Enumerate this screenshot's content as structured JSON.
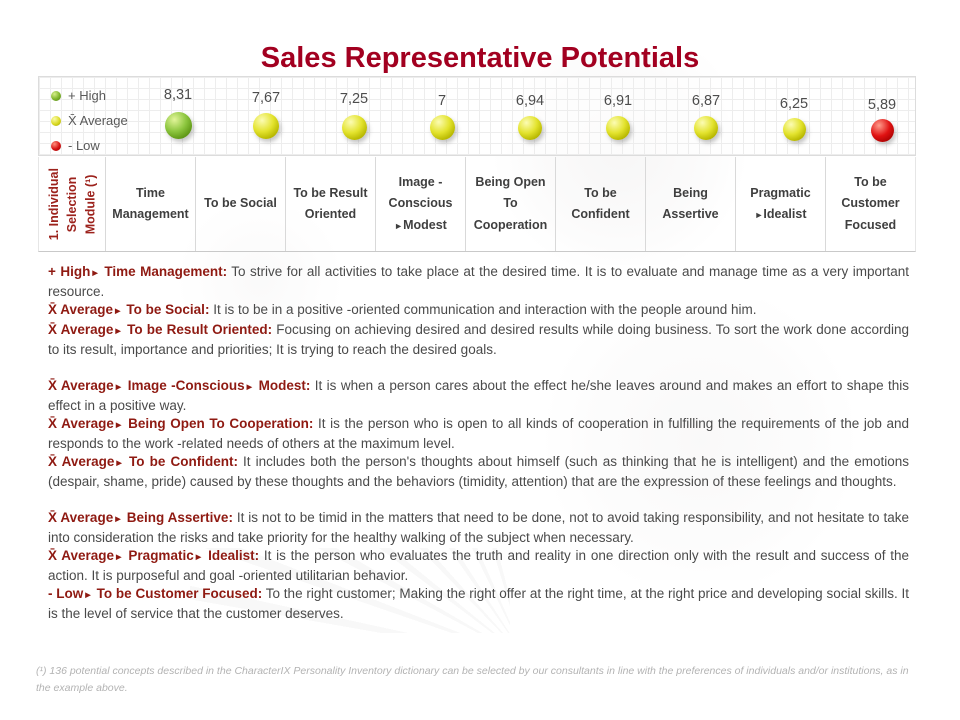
{
  "header": {
    "title": "Sales Representative Potentials"
  },
  "colors": {
    "title_red": "#a20020",
    "lead_red": "#8f1a12",
    "module_red": "#9c221c",
    "ball_high_green": "#8dc63f",
    "ball_average_yellow": "#e3e32e",
    "ball_low_red": "#e01212",
    "body_text": "#4a4a4a"
  },
  "chart_data": {
    "type": "scatter",
    "title": "Sales Representative Potentials",
    "xlabel": "",
    "ylabel": "",
    "grid": true,
    "legend_position": "left-inside",
    "value_range": [
      5.89,
      8.31
    ],
    "legend": [
      {
        "key": "high",
        "label": "+ High",
        "color": "#8dc63f"
      },
      {
        "key": "average",
        "label": "X̄ Average",
        "color": "#e3e32e"
      },
      {
        "key": "low",
        "label": "- Low",
        "color": "#e01212"
      }
    ],
    "categories": [
      "Time Management",
      "To be Social",
      "To be Result Oriented",
      "Image -Conscious ►Modest",
      "Being Open To Cooperation",
      "To be Confident",
      "Being Assertive",
      "Pragmatic ►Idealist",
      "To be Customer Focused"
    ],
    "points": [
      {
        "category": "Time Management",
        "value": 8.31,
        "display": "8,31",
        "level": "high"
      },
      {
        "category": "To be Social",
        "value": 7.67,
        "display": "7,67",
        "level": "average"
      },
      {
        "category": "To be Result Oriented",
        "value": 7.25,
        "display": "7,25",
        "level": "average"
      },
      {
        "category": "Image -Conscious ►Modest",
        "value": 7.0,
        "display": "7",
        "level": "average"
      },
      {
        "category": "Being Open To Cooperation",
        "value": 6.94,
        "display": "6,94",
        "level": "average"
      },
      {
        "category": "To be Confident",
        "value": 6.91,
        "display": "6,91",
        "level": "average"
      },
      {
        "category": "Being Assertive",
        "value": 6.87,
        "display": "6,87",
        "level": "average"
      },
      {
        "category": "Pragmatic ►Idealist",
        "value": 6.25,
        "display": "6,25",
        "level": "average"
      },
      {
        "category": "To be Customer Focused",
        "value": 5.89,
        "display": "5,89",
        "level": "low"
      }
    ]
  },
  "table": {
    "module_label": "1. Individual\nSelection\nModule (¹)",
    "columns": [
      "Time\nManagement",
      "To be Social",
      "To be Result\nOriented",
      "Image -Conscious\n►Modest",
      "Being Open To\nCooperation",
      "To be Confident",
      "Being Assertive",
      "Pragmatic\n►Idealist",
      "To be Customer\nFocused"
    ]
  },
  "descriptions": {
    "groups": [
      {
        "items": [
          {
            "lead": "+ High► Time Management:",
            "text": "To strive for all activities to take place at the desired time. It is to evaluate and manage time as a very important resource."
          },
          {
            "lead": "X̄ Average► To be Social:",
            "text": "It is to be in a positive -oriented communication and interaction with the people around him."
          },
          {
            "lead": "X̄ Average► To be Result Oriented:",
            "text": "Focusing on achieving desired and desired results while doing business. To sort the work done according to its result, importance and priorities; It is trying to reach the desired goals."
          }
        ]
      },
      {
        "items": [
          {
            "lead": "X̄ Average► Image -Conscious► Modest:",
            "text": "It is when a person cares about the effect he/she leaves around and makes an effort to shape this effect in a positive way."
          },
          {
            "lead": "X̄ Average► Being Open To Cooperation:",
            "text": "It is the person who is open to all kinds of cooperation in fulfilling the requirements of the job and responds to the work -related needs of others at the maximum level."
          },
          {
            "lead": "X̄ Average► To be Confident:",
            "text": "It includes both the person's thoughts about himself (such as thinking that he is intelligent) and the emotions (despair, shame, pride) caused by these thoughts and the behaviors (timidity, attention) that are the expression of these feelings and thoughts."
          }
        ]
      },
      {
        "items": [
          {
            "lead": "X̄ Average► Being Assertive:",
            "text": "It is not to be timid in the matters that need to be done, not to avoid taking responsibility, and not hesitate to take into consideration the risks and take priority for the healthy walking of the subject when necessary."
          },
          {
            "lead": "X̄ Average► Pragmatic► Idealist:",
            "text": "It is the person who evaluates the truth and reality in one direction only with the result and success of the action. It is purposeful and goal -oriented utilitarian behavior."
          },
          {
            "lead": "- Low► To be Customer Focused:",
            "text": "To the right customer; Making the right offer at the right time, at the right price and developing social skills. It is the level of service that the customer deserves."
          }
        ]
      }
    ]
  },
  "footnote": {
    "text": "(¹) 136 potential concepts described in the CharacterIX Personality Inventory dictionary can be selected by our consultants in line with the preferences of individuals and/or institutions, as in the example above."
  }
}
